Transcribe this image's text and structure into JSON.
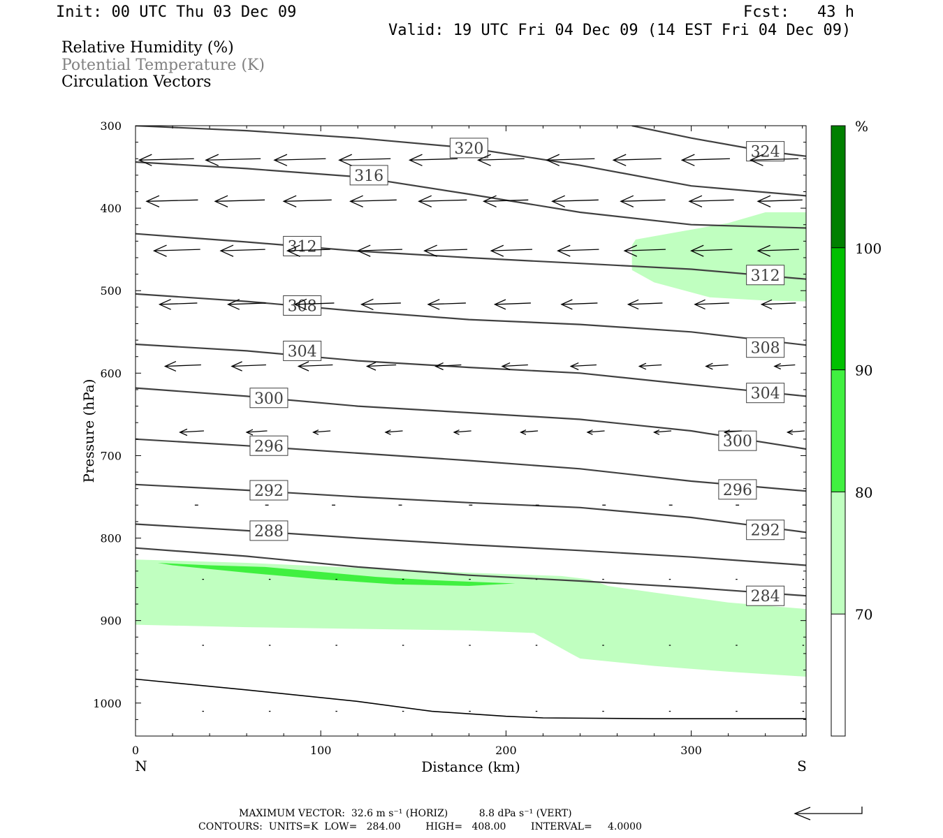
{
  "header": {
    "init": "Init: 00 UTC Thu 03 Dec 09",
    "fcst": "Fcst:   43 h",
    "valid": "Valid: 19 UTC Fri 04 Dec 09 (14 EST Fri 04 Dec 09)"
  },
  "fields": [
    {
      "label": "Relative Humidity (%)",
      "color": "#000000"
    },
    {
      "label": "Potential Temperature (K)",
      "color": "#808080"
    },
    {
      "label": "Circulation Vectors",
      "color": "#000000"
    }
  ],
  "chart_data": {
    "type": "cross-section",
    "xlabel": "Distance (km)",
    "ylabel": "Pressure (hPa)",
    "xlim": [
      0,
      362
    ],
    "ylim": [
      1040,
      300
    ],
    "x_ticks": [
      0,
      100,
      200,
      300
    ],
    "y_ticks": [
      300,
      400,
      500,
      600,
      700,
      800,
      900,
      1000
    ],
    "left_end_label": "N",
    "right_end_label": "S",
    "colorbar": {
      "unit": "%",
      "levels": [
        70,
        80,
        90,
        100
      ],
      "colors": [
        "#ffffff",
        "#c0ffc0",
        "#40f040",
        "#00c000",
        "#008000"
      ]
    },
    "rh_areas": [
      {
        "level": 70,
        "color": "#c0ffc0",
        "points": [
          [
            0,
            826
          ],
          [
            60,
            830
          ],
          [
            120,
            836
          ],
          [
            180,
            842
          ],
          [
            230,
            846
          ],
          [
            245,
            850
          ],
          [
            255,
            858
          ],
          [
            280,
            866
          ],
          [
            320,
            878
          ],
          [
            362,
            886
          ],
          [
            362,
            968
          ],
          [
            320,
            962
          ],
          [
            280,
            955
          ],
          [
            240,
            946
          ],
          [
            235,
            940
          ],
          [
            215,
            915
          ],
          [
            180,
            912
          ],
          [
            120,
            910
          ],
          [
            60,
            908
          ],
          [
            0,
            905
          ]
        ]
      },
      {
        "level": 70,
        "color": "#c0ffc0",
        "points": [
          [
            362,
            405
          ],
          [
            340,
            405
          ],
          [
            320,
            418
          ],
          [
            290,
            430
          ],
          [
            270,
            438
          ],
          [
            268,
            445
          ],
          [
            268,
            475
          ],
          [
            280,
            490
          ],
          [
            310,
            508
          ],
          [
            340,
            512
          ],
          [
            362,
            513
          ]
        ]
      },
      {
        "level": 80,
        "color": "#40f040",
        "points": [
          [
            12,
            830
          ],
          [
            40,
            833
          ],
          [
            70,
            835
          ],
          [
            100,
            841
          ],
          [
            130,
            847
          ],
          [
            160,
            851
          ],
          [
            205,
            855
          ],
          [
            180,
            858
          ],
          [
            140,
            856
          ],
          [
            100,
            850
          ],
          [
            60,
            842
          ],
          [
            20,
            833
          ]
        ]
      }
    ],
    "theta_contours": [
      {
        "value": 284,
        "points": [
          [
            0,
            812
          ],
          [
            60,
            822
          ],
          [
            120,
            835
          ],
          [
            180,
            845
          ],
          [
            240,
            852
          ],
          [
            300,
            860
          ],
          [
            362,
            870
          ]
        ],
        "labels": [
          [
            340,
            870
          ]
        ]
      },
      {
        "value": 288,
        "points": [
          [
            0,
            783
          ],
          [
            60,
            791
          ],
          [
            120,
            800
          ],
          [
            180,
            808
          ],
          [
            240,
            815
          ],
          [
            300,
            823
          ],
          [
            362,
            833
          ]
        ],
        "labels": [
          [
            72,
            791
          ]
        ]
      },
      {
        "value": 292,
        "points": [
          [
            0,
            735
          ],
          [
            60,
            742
          ],
          [
            120,
            750
          ],
          [
            180,
            757
          ],
          [
            240,
            763
          ],
          [
            300,
            775
          ],
          [
            362,
            793
          ]
        ],
        "labels": [
          [
            72,
            742
          ],
          [
            340,
            790
          ]
        ]
      },
      {
        "value": 296,
        "points": [
          [
            0,
            680
          ],
          [
            60,
            688
          ],
          [
            120,
            697
          ],
          [
            180,
            706
          ],
          [
            240,
            716
          ],
          [
            300,
            731
          ],
          [
            362,
            743
          ]
        ],
        "labels": [
          [
            72,
            688
          ],
          [
            325,
            741
          ]
        ]
      },
      {
        "value": 300,
        "points": [
          [
            0,
            618
          ],
          [
            60,
            628
          ],
          [
            120,
            640
          ],
          [
            180,
            648
          ],
          [
            240,
            656
          ],
          [
            300,
            670
          ],
          [
            362,
            692
          ]
        ],
        "labels": [
          [
            72,
            630
          ],
          [
            325,
            682
          ]
        ]
      },
      {
        "value": 304,
        "points": [
          [
            0,
            565
          ],
          [
            60,
            573
          ],
          [
            120,
            585
          ],
          [
            180,
            593
          ],
          [
            240,
            600
          ],
          [
            300,
            614
          ],
          [
            362,
            628
          ]
        ],
        "labels": [
          [
            90,
            573
          ],
          [
            340,
            624
          ]
        ]
      },
      {
        "value": 308,
        "points": [
          [
            0,
            504
          ],
          [
            60,
            513
          ],
          [
            120,
            525
          ],
          [
            180,
            535
          ],
          [
            240,
            541
          ],
          [
            300,
            550
          ],
          [
            362,
            566
          ]
        ],
        "labels": [
          [
            90,
            518
          ],
          [
            340,
            569
          ]
        ]
      },
      {
        "value": 312,
        "points": [
          [
            0,
            431
          ],
          [
            60,
            441
          ],
          [
            120,
            452
          ],
          [
            180,
            460
          ],
          [
            240,
            467
          ],
          [
            300,
            474
          ],
          [
            362,
            486
          ]
        ],
        "labels": [
          [
            90,
            446
          ],
          [
            340,
            481
          ]
        ]
      },
      {
        "value": 316,
        "points": [
          [
            0,
            344
          ],
          [
            60,
            352
          ],
          [
            120,
            362
          ],
          [
            180,
            383
          ],
          [
            240,
            405
          ],
          [
            300,
            420
          ],
          [
            362,
            424
          ]
        ],
        "labels": [
          [
            126,
            360
          ]
        ]
      },
      {
        "value": 320,
        "points": [
          [
            0,
            300
          ],
          [
            60,
            306
          ],
          [
            120,
            315
          ],
          [
            180,
            327
          ],
          [
            240,
            348
          ],
          [
            300,
            373
          ],
          [
            362,
            385
          ]
        ],
        "labels": [
          [
            180,
            327
          ]
        ]
      },
      {
        "value": 324,
        "points": [
          [
            268,
            300
          ],
          [
            300,
            315
          ],
          [
            340,
            331
          ],
          [
            362,
            337
          ]
        ],
        "labels": [
          [
            340,
            331
          ]
        ]
      }
    ],
    "ground_line": [
      [
        0,
        971
      ],
      [
        60,
        984
      ],
      [
        120,
        998
      ],
      [
        160,
        1010
      ],
      [
        200,
        1016
      ],
      [
        220,
        1018
      ],
      [
        280,
        1019
      ],
      [
        362,
        1019
      ]
    ],
    "vector_rows": [
      {
        "p": 340,
        "x": [
          2,
          38,
          75,
          110,
          148,
          185,
          222,
          258,
          295,
          332
        ],
        "u": [
          -32,
          -32,
          -30,
          -30,
          -28,
          -27,
          -28,
          -28,
          -28,
          -28
        ]
      },
      {
        "p": 390,
        "x": [
          6,
          43,
          80,
          116,
          153,
          188,
          225,
          262,
          299,
          336
        ],
        "u": [
          -30,
          -29,
          -28,
          -27,
          -28,
          -26,
          -27,
          -26,
          -26,
          -26
        ]
      },
      {
        "p": 450,
        "x": [
          10,
          46,
          82,
          120,
          156,
          192,
          228,
          264,
          300,
          336
        ],
        "u": [
          -27,
          -26,
          -25,
          -26,
          -25,
          -24,
          -24,
          -24,
          -24,
          -24
        ]
      },
      {
        "p": 515,
        "x": [
          13,
          50,
          86,
          122,
          158,
          194,
          230,
          266,
          302,
          338
        ],
        "u": [
          -22,
          -22,
          -23,
          -23,
          -22,
          -21,
          -21,
          -20,
          -20,
          -20
        ]
      },
      {
        "p": 590,
        "x": [
          16,
          52,
          88,
          125,
          162,
          198,
          235,
          272,
          308,
          345
        ],
        "u": [
          -21,
          -20,
          -20,
          -17,
          -15,
          -15,
          -15,
          -13,
          -13,
          -12
        ]
      },
      {
        "p": 670,
        "x": [
          24,
          60,
          96,
          135,
          172,
          208,
          244,
          280,
          318,
          352
        ],
        "u": [
          -14,
          -12,
          -10,
          -10,
          -10,
          -10,
          -10,
          -10,
          -10,
          -10
        ]
      },
      {
        "p": 760,
        "x": [
          32,
          70,
          106,
          142,
          180,
          216,
          252,
          288,
          324,
          360
        ],
        "u": [
          -2,
          -2,
          -2,
          -2,
          -2,
          -2,
          -2,
          -2,
          -2,
          -2
        ]
      },
      {
        "p": 850,
        "x": [
          36,
          72,
          108,
          144,
          180,
          216,
          252,
          288,
          324,
          360
        ],
        "u": [
          -1,
          -1,
          -1,
          -1,
          -1,
          -1,
          -1,
          -1,
          -1,
          -1
        ]
      },
      {
        "p": 930,
        "x": [
          36,
          72,
          108,
          144,
          180,
          216,
          252,
          288,
          324,
          360
        ],
        "u": [
          -1,
          -1,
          -1,
          -1,
          -1,
          -1,
          -1,
          -1,
          -1,
          -1
        ]
      },
      {
        "p": 1010,
        "x": [
          36,
          72,
          108,
          144,
          180,
          216,
          252,
          288,
          324,
          360
        ],
        "u": [
          -1,
          -1,
          -1,
          -1,
          -1,
          -1,
          -1,
          -1,
          -1,
          -1
        ]
      }
    ]
  },
  "footer": {
    "max_vector": "MAXIMUM VECTOR:  32.6 m s⁻¹ (HORIZ)          8.8 dPa s⁻¹ (VERT)",
    "contours": "CONTOURS:  UNITS=K  LOW=   284.00        HIGH=   408.00        INTERVAL=     4.0000"
  }
}
